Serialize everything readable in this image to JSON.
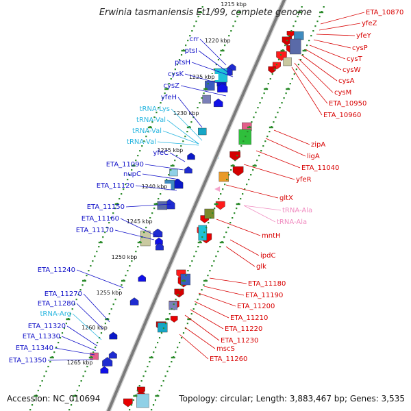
{
  "title": "Erwinia tasmaniensis Et1/99, complete genome",
  "footer": {
    "accession": "Accession: NC_010694",
    "topology": "Topology: circular; Length: 3,883,467 bp; Genes: 3,535"
  },
  "colors": {
    "backbone": "#7a7a7a",
    "tick_dot": "#2a8a2a",
    "left_label": "#1010c8",
    "right_label": "#d80000",
    "trna_left": "#29b6e0",
    "trna_right": "#f08cc0",
    "forward_feature": "#1010e8",
    "reverse_feature": "#e80000"
  },
  "scale_labels": [
    "1215 kbp",
    "1220 kbp",
    "1225 kbp",
    "1230 kbp",
    "1235 kbp",
    "1240 kbp",
    "1245 kbp",
    "1250 kbp",
    "1255 kbp",
    "1260 kbp",
    "1265 kbp"
  ],
  "left_labels": [
    {
      "text": "crr",
      "kind": "gene"
    },
    {
      "text": "ptsI",
      "kind": "gene"
    },
    {
      "text": "ptsH",
      "kind": "gene"
    },
    {
      "text": "cysK",
      "kind": "gene"
    },
    {
      "text": "cysZ",
      "kind": "gene"
    },
    {
      "text": "yfeH",
      "kind": "gene"
    },
    {
      "text": "tRNA-Lys",
      "kind": "trna"
    },
    {
      "text": "tRNA-Val",
      "kind": "trna"
    },
    {
      "text": "tRNA-Val",
      "kind": "trna"
    },
    {
      "text": "tRNA-Val",
      "kind": "trna"
    },
    {
      "text": "yfeC",
      "kind": "gene"
    },
    {
      "text": "ETA_11090",
      "kind": "gene"
    },
    {
      "text": "nupC",
      "kind": "gene"
    },
    {
      "text": "ETA_11120",
      "kind": "gene"
    },
    {
      "text": "ETA_11150",
      "kind": "gene"
    },
    {
      "text": "ETA_11160",
      "kind": "gene"
    },
    {
      "text": "ETA_11170",
      "kind": "gene"
    },
    {
      "text": "ETA_11240",
      "kind": "gene"
    },
    {
      "text": "ETA_11270",
      "kind": "gene"
    },
    {
      "text": "ETA_11280",
      "kind": "gene"
    },
    {
      "text": "tRNA-Arg",
      "kind": "trna"
    },
    {
      "text": "ETA_11320",
      "kind": "gene"
    },
    {
      "text": "ETA_11330",
      "kind": "gene"
    },
    {
      "text": "ETA_11340",
      "kind": "gene"
    },
    {
      "text": "ETA_11350",
      "kind": "gene"
    }
  ],
  "right_labels": [
    {
      "text": "ETA_10870",
      "kind": "gene"
    },
    {
      "text": "yfeZ",
      "kind": "gene"
    },
    {
      "text": "yfeY",
      "kind": "gene"
    },
    {
      "text": "cysP",
      "kind": "gene"
    },
    {
      "text": "cysT",
      "kind": "gene"
    },
    {
      "text": "cysW",
      "kind": "gene"
    },
    {
      "text": "cysA",
      "kind": "gene"
    },
    {
      "text": "cysM",
      "kind": "gene"
    },
    {
      "text": "ETA_10950",
      "kind": "gene"
    },
    {
      "text": "ETA_10960",
      "kind": "gene"
    },
    {
      "text": "zipA",
      "kind": "gene"
    },
    {
      "text": "ligA",
      "kind": "gene"
    },
    {
      "text": "ETA_11040",
      "kind": "gene"
    },
    {
      "text": "yfeR",
      "kind": "gene"
    },
    {
      "text": "gltX",
      "kind": "gene"
    },
    {
      "text": "tRNA-Ala",
      "kind": "trna"
    },
    {
      "text": "tRNA-Ala",
      "kind": "trna"
    },
    {
      "text": "mntH",
      "kind": "gene"
    },
    {
      "text": "ipdC",
      "kind": "gene"
    },
    {
      "text": "glk",
      "kind": "gene"
    },
    {
      "text": "ETA_11180",
      "kind": "gene"
    },
    {
      "text": "ETA_11190",
      "kind": "gene"
    },
    {
      "text": "ETA_11200",
      "kind": "gene"
    },
    {
      "text": "ETA_11210",
      "kind": "gene"
    },
    {
      "text": "ETA_11220",
      "kind": "gene"
    },
    {
      "text": "ETA_11230",
      "kind": "gene"
    },
    {
      "text": "mscS",
      "kind": "gene"
    },
    {
      "text": "ETA_11260",
      "kind": "gene"
    }
  ]
}
